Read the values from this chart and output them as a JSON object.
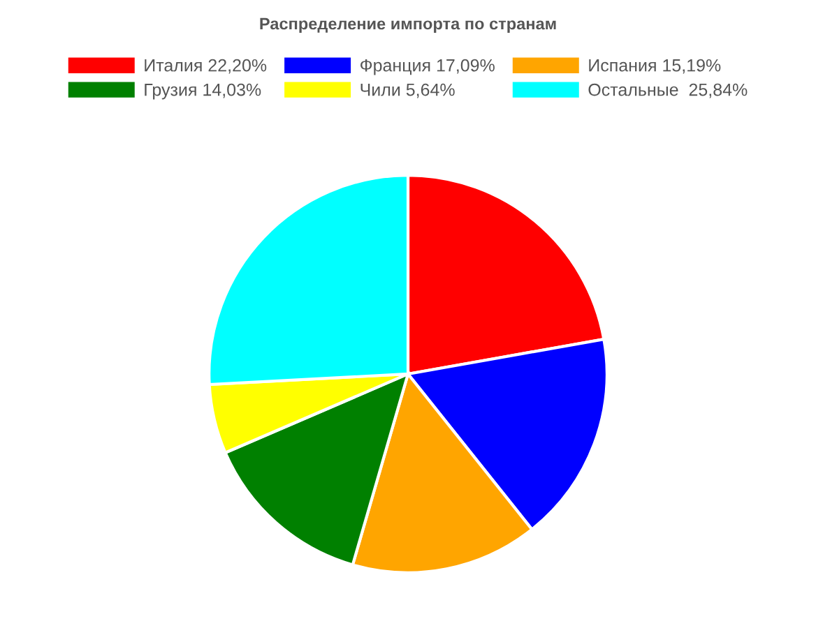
{
  "chart_data": {
    "type": "pie",
    "title": "Распределение импорта по странам",
    "categories": [
      "Италия 22,20%",
      "Франция 17,09%",
      "Испания 15,19%",
      "Грузия 14,03%",
      "Чили 5,64%",
      "Остальные  25,84%"
    ],
    "values": [
      22.2,
      17.09,
      15.19,
      14.03,
      5.64,
      25.84
    ],
    "colors": [
      "#ff0000",
      "#0000ff",
      "#ffa500",
      "#008000",
      "#ffff00",
      "#00ffff"
    ],
    "legend": "top"
  }
}
